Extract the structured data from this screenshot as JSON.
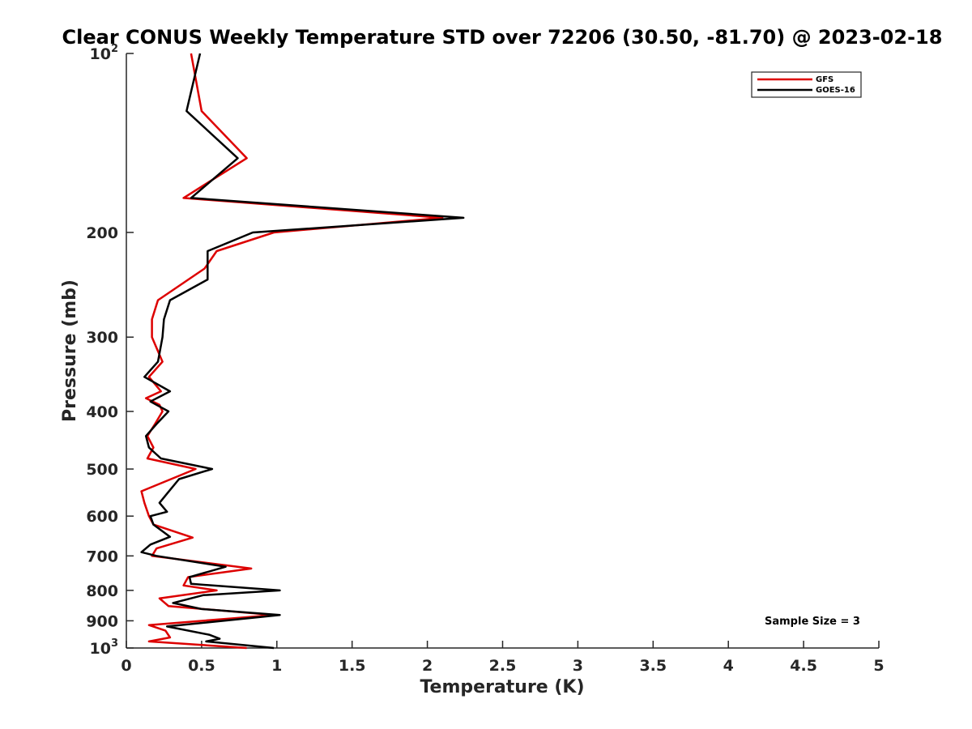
{
  "chart_data": {
    "type": "line",
    "title": "Clear CONUS Weekly Temperature STD over 72206 (30.50, -81.70) @ 2023-02-18",
    "xlabel": "Temperature (K)",
    "ylabel": "Pressure (mb)",
    "xlim": [
      0,
      5
    ],
    "ylim": [
      100,
      1000
    ],
    "y_scale": "log",
    "y_reversed": true,
    "x_ticks": [
      "0",
      "0.5",
      "1",
      "1.5",
      "2",
      "2.5",
      "3",
      "3.5",
      "4",
      "4.5",
      "5"
    ],
    "y_ticks": [
      {
        "value": 100,
        "base": "10",
        "exp": "2"
      },
      {
        "value": 200,
        "label": "200"
      },
      {
        "value": 300,
        "label": "300"
      },
      {
        "value": 400,
        "label": "400"
      },
      {
        "value": 500,
        "label": "500"
      },
      {
        "value": 600,
        "label": "600"
      },
      {
        "value": 700,
        "label": "700"
      },
      {
        "value": 800,
        "label": "800"
      },
      {
        "value": 900,
        "label": "900"
      },
      {
        "value": 1000,
        "base": "10",
        "exp": "3"
      }
    ],
    "grid": false,
    "legend_position": "top-right",
    "annotation": "Sample Size = 3",
    "series": [
      {
        "name": "GFS",
        "color": "#dd0000",
        "points": [
          [
            0.43,
            100
          ],
          [
            0.5,
            125
          ],
          [
            0.8,
            150
          ],
          [
            0.38,
            175
          ],
          [
            2.1,
            189
          ],
          [
            0.98,
            200
          ],
          [
            0.6,
            215
          ],
          [
            0.52,
            230
          ],
          [
            0.21,
            260
          ],
          [
            0.17,
            280
          ],
          [
            0.17,
            300
          ],
          [
            0.24,
            330
          ],
          [
            0.15,
            350
          ],
          [
            0.23,
            370
          ],
          [
            0.13,
            380
          ],
          [
            0.22,
            390
          ],
          [
            0.24,
            400
          ],
          [
            0.19,
            420
          ],
          [
            0.14,
            440
          ],
          [
            0.18,
            460
          ],
          [
            0.14,
            480
          ],
          [
            0.46,
            500
          ],
          [
            0.1,
            545
          ],
          [
            0.12,
            570
          ],
          [
            0.15,
            600
          ],
          [
            0.18,
            620
          ],
          [
            0.44,
            652
          ],
          [
            0.2,
            680
          ],
          [
            0.17,
            700
          ],
          [
            0.83,
            735
          ],
          [
            0.41,
            760
          ],
          [
            0.38,
            785
          ],
          [
            0.6,
            800
          ],
          [
            0.22,
            825
          ],
          [
            0.28,
            850
          ],
          [
            0.98,
            880
          ],
          [
            0.15,
            915
          ],
          [
            0.26,
            935
          ],
          [
            0.29,
            960
          ],
          [
            0.15,
            975
          ],
          [
            0.8,
            1000
          ]
        ]
      },
      {
        "name": "GOES-16",
        "color": "#000000",
        "points": [
          [
            0.49,
            100
          ],
          [
            0.4,
            125
          ],
          [
            0.74,
            150
          ],
          [
            0.43,
            175
          ],
          [
            2.24,
            189
          ],
          [
            0.84,
            200
          ],
          [
            0.54,
            215
          ],
          [
            0.54,
            230
          ],
          [
            0.54,
            240
          ],
          [
            0.29,
            260
          ],
          [
            0.25,
            280
          ],
          [
            0.24,
            300
          ],
          [
            0.21,
            330
          ],
          [
            0.12,
            350
          ],
          [
            0.29,
            370
          ],
          [
            0.16,
            385
          ],
          [
            0.28,
            400
          ],
          [
            0.2,
            420
          ],
          [
            0.13,
            440
          ],
          [
            0.15,
            460
          ],
          [
            0.23,
            480
          ],
          [
            0.57,
            500
          ],
          [
            0.35,
            520
          ],
          [
            0.27,
            550
          ],
          [
            0.22,
            570
          ],
          [
            0.27,
            590
          ],
          [
            0.16,
            600
          ],
          [
            0.18,
            620
          ],
          [
            0.29,
            650
          ],
          [
            0.16,
            670
          ],
          [
            0.1,
            690
          ],
          [
            0.2,
            700
          ],
          [
            0.66,
            730
          ],
          [
            0.42,
            760
          ],
          [
            0.43,
            780
          ],
          [
            1.02,
            800
          ],
          [
            0.51,
            815
          ],
          [
            0.31,
            840
          ],
          [
            0.5,
            860
          ],
          [
            1.02,
            880
          ],
          [
            0.27,
            920
          ],
          [
            0.55,
            950
          ],
          [
            0.62,
            965
          ],
          [
            0.53,
            975
          ],
          [
            0.98,
            1000
          ]
        ]
      }
    ]
  }
}
